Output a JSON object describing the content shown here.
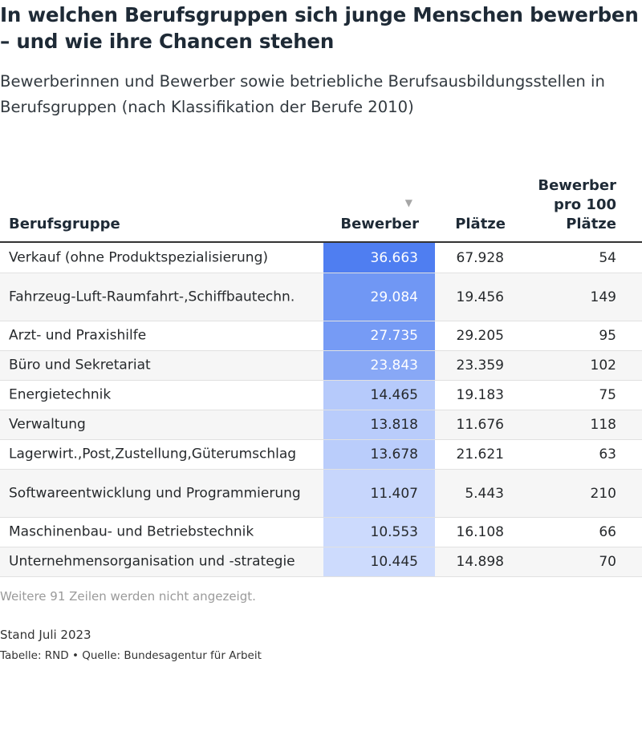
{
  "title": "In welchen Berufsgruppen sich junge Menschen bewerben – und wie ihre Chancen stehen",
  "subtitle": "Bewerberinnen und Bewerber sowie betriebliche Berufsausbildungsstellen in Berufsgruppen (nach Klassifikation der Berufe 2010)",
  "colors": {
    "accent_strong": "#4f7ef1",
    "accent_light": "#cddbfd",
    "rule": "#333333"
  },
  "table": {
    "headers": {
      "group": "Berufsgruppe",
      "applicants": "Bewerber",
      "places": "Plätze",
      "ratio": "Bewerber pro 100 Plätze"
    },
    "sort_icon": "sort-down-icon",
    "sort_symbol": "▼"
  },
  "chart_data": {
    "type": "table",
    "columns": [
      "Berufsgruppe",
      "Bewerber",
      "Plätze",
      "Bewerber pro 100 Plätze"
    ],
    "sorted_by": "Bewerber",
    "rows": [
      {
        "group": "Verkauf (ohne Produktspezialisierung)",
        "applicants": "36.663",
        "places": "67.928",
        "ratio": "54",
        "applicants_value": 36663
      },
      {
        "group": "Fahrzeug-Luft-Raumfahrt-,Schiffbautechn.",
        "applicants": "29.084",
        "places": "19.456",
        "ratio": "149",
        "applicants_value": 29084
      },
      {
        "group": "Arzt- und Praxishilfe",
        "applicants": "27.735",
        "places": "29.205",
        "ratio": "95",
        "applicants_value": 27735
      },
      {
        "group": "Büro und Sekretariat",
        "applicants": "23.843",
        "places": "23.359",
        "ratio": "102",
        "applicants_value": 23843
      },
      {
        "group": "Energietechnik",
        "applicants": "14.465",
        "places": "19.183",
        "ratio": "75",
        "applicants_value": 14465
      },
      {
        "group": "Verwaltung",
        "applicants": "13.818",
        "places": "11.676",
        "ratio": "118",
        "applicants_value": 13818
      },
      {
        "group": "Lagerwirt.,Post,Zustellung,Güterumschlag",
        "applicants": "13.678",
        "places": "21.621",
        "ratio": "63",
        "applicants_value": 13678
      },
      {
        "group": "Softwareentwicklung und Programmierung",
        "applicants": "11.407",
        "places": "5.443",
        "ratio": "210",
        "applicants_value": 11407
      },
      {
        "group": "Maschinenbau- und Betriebstechnik",
        "applicants": "10.553",
        "places": "16.108",
        "ratio": "66",
        "applicants_value": 10553
      },
      {
        "group": "Unternehmensorganisation und -strategie",
        "applicants": "10.445",
        "places": "14.898",
        "ratio": "70",
        "applicants_value": 10445
      }
    ]
  },
  "footer": {
    "more_rows": "Weitere 91 Zeilen werden nicht angezeigt.",
    "stand": "Stand Juli 2023",
    "credit": "Tabelle: RND • Quelle: Bundesagentur für Arbeit"
  }
}
